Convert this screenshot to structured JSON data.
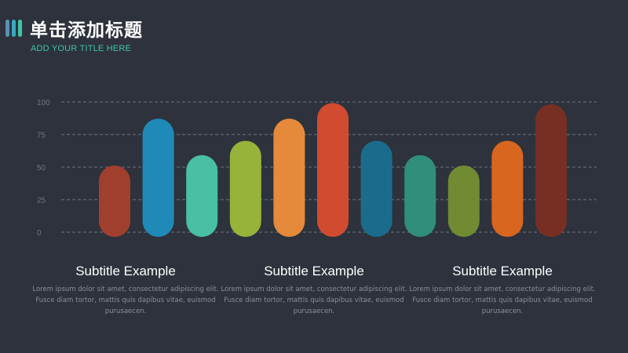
{
  "header": {
    "title": "单击添加标题",
    "subtitle": "ADD YOUR TITLE HERE",
    "accent_colors": [
      "#5b8fb5",
      "#3aa9c4",
      "#3fc4a8"
    ]
  },
  "chart_data": {
    "type": "bar",
    "y_ticks": [
      "100",
      "75",
      "50",
      "25",
      "0"
    ],
    "ylim": [
      0,
      100
    ],
    "grid": true,
    "values": [
      50,
      86,
      58,
      69,
      86,
      98,
      69,
      58,
      50,
      69,
      97
    ],
    "colors": [
      "#a13f2f",
      "#1f8ab7",
      "#49bfa3",
      "#97b33a",
      "#e58a3b",
      "#d04b2f",
      "#1b6c8c",
      "#2f8f79",
      "#708b31",
      "#d9661f",
      "#772f24"
    ]
  },
  "blurbs": [
    {
      "title": "Subtitle Example",
      "body": "Lorem ipsum dolor sit amet, consectetur adipiscing elit. Fusce diam tortor,  mattis quis dapibus vitae, euismod  purusaecen."
    },
    {
      "title": "Subtitle Example",
      "body": "Lorem ipsum dolor sit amet, consectetur adipiscing elit. Fusce diam tortor,  mattis quis dapibus vitae, euismod  purusaecen."
    },
    {
      "title": "Subtitle Example",
      "body": "Lorem ipsum dolor sit amet, consectetur adipiscing elit. Fusce diam tortor,  mattis quis dapibus vitae, euismod  purusaecen."
    }
  ]
}
